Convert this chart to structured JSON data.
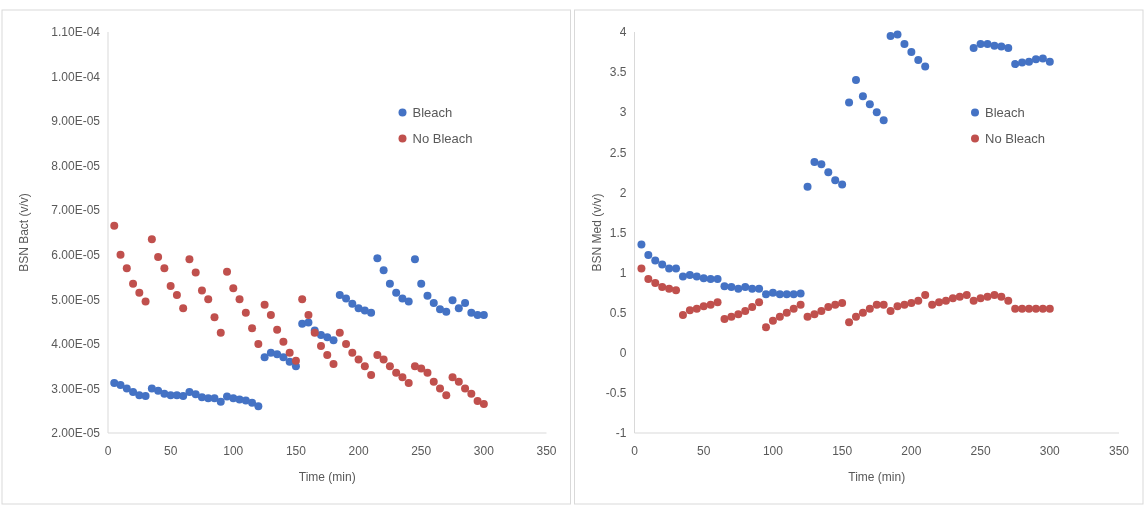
{
  "chart_data": [
    {
      "type": "scatter",
      "xlabel": "Time (min)",
      "ylabel": "BSN Bact (v/v)",
      "xlim": [
        0,
        350
      ],
      "xticks": [
        0,
        50,
        100,
        150,
        200,
        250,
        300,
        350
      ],
      "ylim": [
        2e-05,
        0.00011
      ],
      "yticks": [
        {
          "value": 2e-05,
          "label": "2.00E-05"
        },
        {
          "value": 3e-05,
          "label": "3.00E-05"
        },
        {
          "value": 4e-05,
          "label": "4.00E-05"
        },
        {
          "value": 5e-05,
          "label": "5.00E-05"
        },
        {
          "value": 6e-05,
          "label": "6.00E-05"
        },
        {
          "value": 7e-05,
          "label": "7.00E-05"
        },
        {
          "value": 8e-05,
          "label": "8.00E-05"
        },
        {
          "value": 9e-05,
          "label": "9.00E-05"
        },
        {
          "value": 0.0001,
          "label": "1.00E-04"
        },
        {
          "value": 0.00011,
          "label": "1.10E-04"
        }
      ],
      "grid": false,
      "legend": "right",
      "marker": "circle",
      "x": [
        5,
        10,
        15,
        20,
        25,
        30,
        35,
        40,
        45,
        50,
        55,
        60,
        65,
        70,
        75,
        80,
        85,
        90,
        95,
        100,
        105,
        110,
        115,
        120,
        125,
        130,
        135,
        140,
        145,
        150,
        155,
        160,
        165,
        170,
        175,
        180,
        185,
        190,
        195,
        200,
        205,
        210,
        215,
        220,
        225,
        230,
        235,
        240,
        245,
        250,
        255,
        260,
        265,
        270,
        275,
        280,
        285,
        290,
        295,
        300
      ],
      "series": [
        {
          "name": "Bleach",
          "color": "#4472c4",
          "values": [
            3.12e-05,
            3.08e-05,
            3e-05,
            2.92e-05,
            2.85e-05,
            2.83e-05,
            3e-05,
            2.95e-05,
            2.88e-05,
            2.85e-05,
            2.85e-05,
            2.83e-05,
            2.92e-05,
            2.87e-05,
            2.8e-05,
            2.78e-05,
            2.78e-05,
            2.7e-05,
            2.82e-05,
            2.78e-05,
            2.75e-05,
            2.73e-05,
            2.68e-05,
            2.6e-05,
            3.7e-05,
            3.8e-05,
            3.77e-05,
            3.7e-05,
            3.6e-05,
            3.5e-05,
            4.45e-05,
            4.48e-05,
            4.3e-05,
            4.2e-05,
            4.15e-05,
            4.08e-05,
            5.1e-05,
            5.02e-05,
            4.9e-05,
            4.8e-05,
            4.75e-05,
            4.7e-05,
            5.92e-05,
            5.65e-05,
            5.35e-05,
            5.15e-05,
            5.02e-05,
            4.95e-05,
            5.9e-05,
            5.35e-05,
            5.08e-05,
            4.92e-05,
            4.78e-05,
            4.72e-05,
            4.98e-05,
            4.8e-05,
            4.92e-05,
            4.7e-05,
            4.65e-05,
            4.65e-05
          ]
        },
        {
          "name": "No Bleach",
          "color": "#c0504d",
          "values": [
            6.65e-05,
            6e-05,
            5.7e-05,
            5.35e-05,
            5.15e-05,
            4.95e-05,
            6.35e-05,
            5.95e-05,
            5.7e-05,
            5.3e-05,
            5.1e-05,
            4.8e-05,
            5.9e-05,
            5.6e-05,
            5.2e-05,
            5e-05,
            4.6e-05,
            4.25e-05,
            5.62e-05,
            5.25e-05,
            5e-05,
            4.7e-05,
            4.35e-05,
            4e-05,
            4.88e-05,
            4.65e-05,
            4.32e-05,
            4.05e-05,
            3.8e-05,
            3.62e-05,
            5e-05,
            4.65e-05,
            4.25e-05,
            3.95e-05,
            3.75e-05,
            3.55e-05,
            4.25e-05,
            4e-05,
            3.8e-05,
            3.65e-05,
            3.5e-05,
            3.3e-05,
            3.75e-05,
            3.65e-05,
            3.5e-05,
            3.35e-05,
            3.25e-05,
            3.12e-05,
            3.5e-05,
            3.45e-05,
            3.35e-05,
            3.15e-05,
            3e-05,
            2.85e-05,
            3.25e-05,
            3.15e-05,
            3e-05,
            2.88e-05,
            2.72e-05,
            2.65e-05
          ]
        }
      ]
    },
    {
      "type": "scatter",
      "xlabel": "Time (min)",
      "ylabel": "BSN Med (v/v)",
      "xlim": [
        0,
        350
      ],
      "xticks": [
        0,
        50,
        100,
        150,
        200,
        250,
        300,
        350
      ],
      "ylim": [
        -1,
        4
      ],
      "yticks": [
        -1,
        -0.5,
        0,
        0.5,
        1,
        1.5,
        2,
        2.5,
        3,
        3.5,
        4
      ],
      "grid": false,
      "legend": "right",
      "marker": "circle",
      "x": [
        5,
        10,
        15,
        20,
        25,
        30,
        35,
        40,
        45,
        50,
        55,
        60,
        65,
        70,
        75,
        80,
        85,
        90,
        95,
        100,
        105,
        110,
        115,
        120,
        125,
        130,
        135,
        140,
        145,
        150,
        155,
        160,
        165,
        170,
        175,
        180,
        185,
        190,
        195,
        200,
        205,
        210,
        215,
        220,
        225,
        230,
        235,
        240,
        245,
        250,
        255,
        260,
        265,
        270,
        275,
        280,
        285,
        290,
        295,
        300
      ],
      "series": [
        {
          "name": "Bleach",
          "color": "#4472c4",
          "values": [
            1.35,
            1.22,
            1.15,
            1.1,
            1.05,
            1.05,
            0.95,
            0.97,
            0.95,
            0.93,
            0.92,
            0.92,
            0.83,
            0.82,
            0.8,
            0.82,
            0.8,
            0.8,
            0.73,
            0.75,
            0.73,
            0.73,
            0.73,
            0.74,
            2.07,
            2.38,
            2.35,
            2.25,
            2.15,
            2.1,
            3.12,
            3.4,
            3.2,
            3.1,
            3.0,
            2.9,
            3.95,
            3.97,
            3.85,
            3.75,
            3.65,
            3.57,
            null,
            null,
            null,
            null,
            null,
            null,
            3.8,
            3.85,
            3.85,
            3.83,
            3.82,
            3.8,
            3.6,
            3.62,
            3.63,
            3.66,
            3.67,
            3.63
          ]
        },
        {
          "name": "No Bleach",
          "color": "#c0504d",
          "values": [
            1.05,
            0.92,
            0.87,
            0.82,
            0.8,
            0.78,
            0.47,
            0.53,
            0.55,
            0.58,
            0.6,
            0.63,
            0.42,
            0.45,
            0.48,
            0.52,
            0.57,
            0.63,
            0.32,
            0.4,
            0.45,
            0.5,
            0.55,
            0.6,
            0.45,
            0.48,
            0.52,
            0.57,
            0.6,
            0.62,
            0.38,
            0.45,
            0.5,
            0.55,
            0.6,
            0.6,
            0.52,
            0.58,
            0.6,
            0.62,
            0.65,
            0.72,
            0.6,
            0.63,
            0.65,
            0.68,
            0.7,
            0.72,
            0.65,
            0.68,
            0.7,
            0.72,
            0.7,
            0.65,
            0.55,
            0.55,
            0.55,
            0.55,
            0.55,
            0.55
          ]
        }
      ]
    }
  ]
}
